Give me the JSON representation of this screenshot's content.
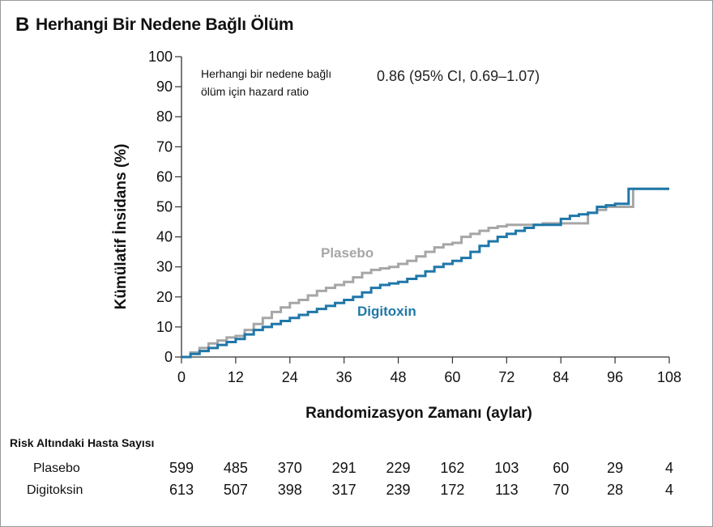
{
  "panel": {
    "letter": "B",
    "title": "Herhangi Bir Nedene Bağlı Ölüm"
  },
  "chart_data": {
    "type": "line",
    "title": "Herhangi Bir Nedene Bağlı Ölüm",
    "xlabel": "Randomizasyon Zamanı (aylar)",
    "ylabel": "Kümülatif İnsidans (%)",
    "xlim": [
      0,
      108
    ],
    "ylim": [
      0,
      100
    ],
    "x_ticks": [
      0,
      12,
      24,
      36,
      48,
      60,
      72,
      84,
      96,
      108
    ],
    "y_ticks": [
      0,
      10,
      20,
      30,
      40,
      50,
      60,
      70,
      80,
      90,
      100
    ],
    "x_tick_labels": [
      "0",
      "12",
      "24",
      "36",
      "48",
      "60",
      "72",
      "84",
      "96",
      "108"
    ],
    "y_tick_labels": [
      "0",
      "10",
      "20",
      "30",
      "40",
      "50",
      "60",
      "70",
      "80",
      "90",
      "100"
    ],
    "grid": false,
    "annotation": {
      "label_line1": "Herhangi bir nedene bağlı",
      "label_line2": "ölüm için hazard ratio",
      "value": "0.86 (95% CI, 0.69–1.07)"
    },
    "series": [
      {
        "name": "Plasebo",
        "color": "#a6a6a6",
        "points": [
          [
            0,
            0
          ],
          [
            2,
            1.5
          ],
          [
            4,
            3
          ],
          [
            6,
            4.5
          ],
          [
            8,
            5.5
          ],
          [
            10,
            6.5
          ],
          [
            12,
            7
          ],
          [
            14,
            9
          ],
          [
            16,
            11
          ],
          [
            18,
            13
          ],
          [
            20,
            15
          ],
          [
            22,
            16.5
          ],
          [
            24,
            18
          ],
          [
            26,
            19
          ],
          [
            28,
            20.5
          ],
          [
            30,
            22
          ],
          [
            32,
            23
          ],
          [
            34,
            24
          ],
          [
            36,
            25
          ],
          [
            38,
            26.5
          ],
          [
            40,
            28
          ],
          [
            42,
            29
          ],
          [
            44,
            29.5
          ],
          [
            46,
            30
          ],
          [
            48,
            31
          ],
          [
            50,
            32
          ],
          [
            52,
            33.5
          ],
          [
            54,
            35
          ],
          [
            56,
            36.5
          ],
          [
            58,
            37.5
          ],
          [
            60,
            38
          ],
          [
            62,
            40
          ],
          [
            64,
            41
          ],
          [
            66,
            42
          ],
          [
            68,
            43
          ],
          [
            70,
            43.5
          ],
          [
            72,
            44
          ],
          [
            76,
            44
          ],
          [
            80,
            44.5
          ],
          [
            84,
            44.5
          ],
          [
            88,
            44.5
          ],
          [
            90,
            48
          ],
          [
            92,
            49
          ],
          [
            94,
            50
          ],
          [
            96,
            50
          ],
          [
            100,
            50
          ],
          [
            100,
            56
          ],
          [
            108,
            56
          ]
        ]
      },
      {
        "name": "Digitoxin",
        "color": "#1f77a8",
        "points": [
          [
            0,
            0
          ],
          [
            2,
            1
          ],
          [
            4,
            2
          ],
          [
            6,
            3
          ],
          [
            8,
            4
          ],
          [
            10,
            5
          ],
          [
            12,
            6
          ],
          [
            14,
            7.5
          ],
          [
            16,
            9
          ],
          [
            18,
            10
          ],
          [
            20,
            11
          ],
          [
            22,
            12
          ],
          [
            24,
            13
          ],
          [
            26,
            14
          ],
          [
            28,
            15
          ],
          [
            30,
            16
          ],
          [
            32,
            17
          ],
          [
            34,
            18
          ],
          [
            36,
            19
          ],
          [
            38,
            20
          ],
          [
            40,
            21.5
          ],
          [
            42,
            23
          ],
          [
            44,
            24
          ],
          [
            46,
            24.5
          ],
          [
            48,
            25
          ],
          [
            50,
            26
          ],
          [
            52,
            27
          ],
          [
            54,
            28.5
          ],
          [
            56,
            30
          ],
          [
            58,
            31
          ],
          [
            60,
            32
          ],
          [
            62,
            33
          ],
          [
            64,
            35
          ],
          [
            66,
            37
          ],
          [
            68,
            38.5
          ],
          [
            70,
            40
          ],
          [
            72,
            41
          ],
          [
            74,
            42
          ],
          [
            76,
            43
          ],
          [
            78,
            44
          ],
          [
            80,
            44
          ],
          [
            82,
            44
          ],
          [
            84,
            46
          ],
          [
            86,
            47
          ],
          [
            88,
            47.5
          ],
          [
            90,
            48
          ],
          [
            92,
            50
          ],
          [
            94,
            50.5
          ],
          [
            96,
            51
          ],
          [
            98,
            51
          ],
          [
            99,
            51
          ],
          [
            99,
            56
          ],
          [
            108,
            56
          ]
        ]
      }
    ]
  },
  "risk_table": {
    "title": "Risk Altındaki Hasta Sayısı",
    "rows": [
      {
        "label": "Plasebo",
        "values": [
          "599",
          "485",
          "370",
          "291",
          "229",
          "162",
          "103",
          "60",
          "29",
          "4"
        ]
      },
      {
        "label": "Digitoksin",
        "values": [
          "613",
          "507",
          "398",
          "317",
          "239",
          "172",
          "113",
          "70",
          "28",
          "4"
        ]
      }
    ]
  }
}
